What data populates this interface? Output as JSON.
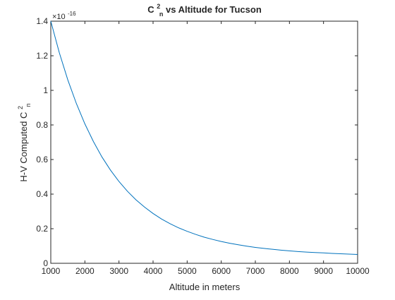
{
  "chart_data": {
    "type": "line",
    "title": {
      "base": "C",
      "sup": "2",
      "sub": "n",
      "rest": " vs Altitude for Tucson"
    },
    "xlabel": "Altitude in meters",
    "ylabel": {
      "base": "H-V Computed C",
      "sup": "2",
      "sub": "n"
    },
    "exponent_label": {
      "prefix": "×10",
      "power": "-16"
    },
    "xlim": [
      1000,
      10000
    ],
    "ylim": [
      0,
      1.4
    ],
    "x_ticks": [
      1000,
      2000,
      3000,
      4000,
      5000,
      6000,
      7000,
      8000,
      9000,
      10000
    ],
    "y_ticks": [
      0,
      0.2,
      0.4,
      0.6,
      0.8,
      1,
      1.2,
      1.4
    ],
    "x_tick_labels": [
      "1000",
      "2000",
      "3000",
      "4000",
      "5000",
      "6000",
      "7000",
      "8000",
      "9000",
      "10000"
    ],
    "y_tick_labels": [
      "0",
      "0.2",
      "0.4",
      "0.6",
      "0.8",
      "1",
      "1.2",
      "1.4"
    ],
    "grid": false,
    "line_color": "#0072BD",
    "series": [
      {
        "x": [
          1000,
          1250,
          1500,
          1750,
          2000,
          2250,
          2500,
          2750,
          3000,
          3250,
          3500,
          3750,
          4000,
          4250,
          4500,
          4750,
          5000,
          5250,
          5500,
          5750,
          6000,
          6250,
          6500,
          6750,
          7000,
          7250,
          7500,
          7750,
          8000,
          8250,
          8500,
          8750,
          9000,
          9250,
          9500,
          9750,
          10000
        ],
        "values": [
          1.4,
          1.218,
          1.06,
          0.924,
          0.806,
          0.704,
          0.615,
          0.539,
          0.473,
          0.416,
          0.367,
          0.325,
          0.288,
          0.256,
          0.229,
          0.205,
          0.185,
          0.167,
          0.151,
          0.138,
          0.126,
          0.116,
          0.107,
          0.099,
          0.092,
          0.086,
          0.081,
          0.076,
          0.072,
          0.068,
          0.065,
          0.062,
          0.06,
          0.057,
          0.055,
          0.053,
          0.051
        ]
      }
    ]
  }
}
